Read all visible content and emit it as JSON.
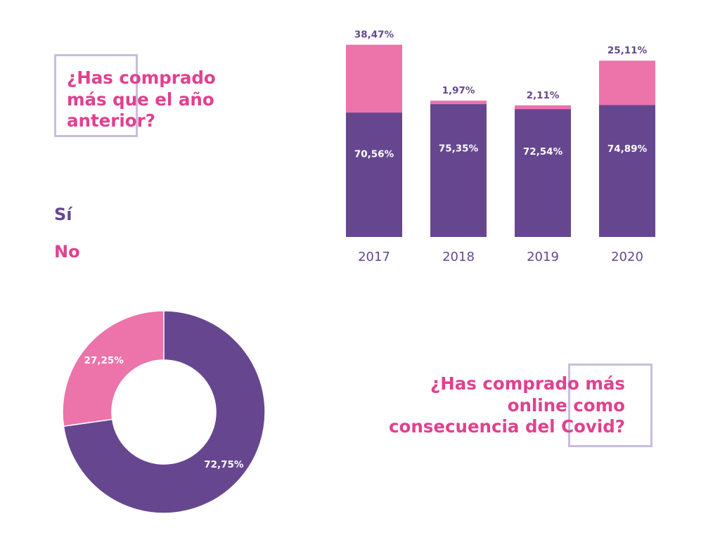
{
  "colors": {
    "si": "#66478f",
    "no": "#ec74ab",
    "question": "#e0418f",
    "frame": "#c9bddc",
    "axis_text": "#66478f"
  },
  "question_1": {
    "lines": [
      "¿Has comprado",
      "más que el año",
      "anterior?"
    ]
  },
  "question_2": {
    "lines": [
      "¿Has comprado más",
      "online como",
      "consecuencia del Covid?"
    ]
  },
  "legend": {
    "si": "Sí",
    "no": "No"
  },
  "chart_data": [
    {
      "type": "bar",
      "stacked": true,
      "categories": [
        "2017",
        "2018",
        "2019",
        "2020"
      ],
      "series": [
        {
          "name": "Sí",
          "values": [
            70.56,
            75.35,
            72.54,
            74.89
          ],
          "labels": [
            "70,56%",
            "75,35%",
            "72,54%",
            "74,89%"
          ]
        },
        {
          "name": "No",
          "values": [
            38.47,
            1.97,
            2.11,
            25.11
          ],
          "labels": [
            "38,47%",
            "1,97%",
            "2,11%",
            "25,11%"
          ]
        }
      ],
      "ylim": [
        0,
        109.03
      ],
      "grid": false
    },
    {
      "type": "pie",
      "donut": true,
      "slices": [
        {
          "name": "No",
          "value": 27.25,
          "label": "27,25%"
        },
        {
          "name": "Sí",
          "value": 72.75,
          "label": "72,75%"
        }
      ]
    }
  ]
}
